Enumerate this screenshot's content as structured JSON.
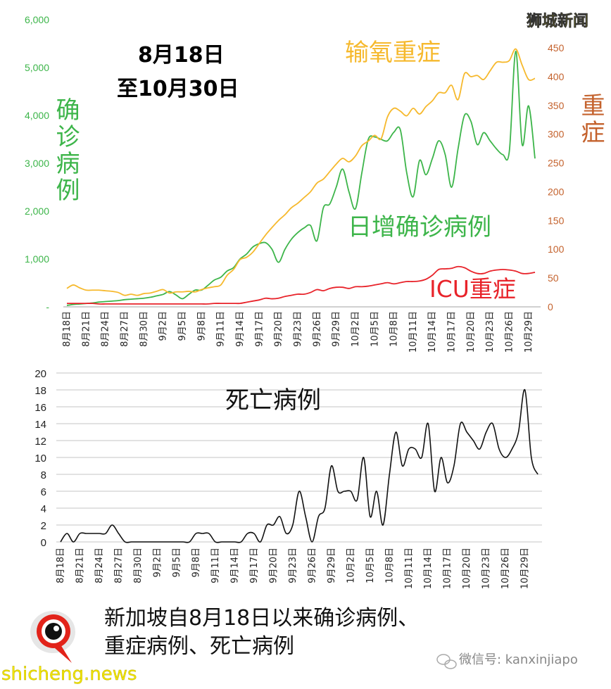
{
  "colors": {
    "cases": "#3db54a",
    "oxygen": "#f6b92d",
    "icu": "#e8232a",
    "right_axis": "#c4622d",
    "deaths": "#111111",
    "grid": "#d9d9d9",
    "watermark": "#f2e500"
  },
  "watermark_top": "狮城新闻",
  "watermark_bottom": "shicheng.news",
  "wechat": {
    "icon": "wechat-icon",
    "label": "微信号: kanxinjiapo"
  },
  "caption": {
    "line1": "新加坡自8月18日以来确诊病例、",
    "line2": "重症病例、死亡病例"
  },
  "chart_data": [
    {
      "type": "line",
      "title_line1": "8月18日",
      "title_line2": "至10月30日",
      "left_axis_label": "确诊病例",
      "right_axis_label": "重症",
      "left_ticks": [
        "-",
        "1,000",
        "2,000",
        "3,000",
        "4,000",
        "5,000",
        "6,000"
      ],
      "left_ylim": [
        0,
        6000
      ],
      "right_ticks": [
        "0",
        "50",
        "100",
        "150",
        "200",
        "250",
        "300",
        "350",
        "400",
        "450"
      ],
      "right_ylim": [
        0,
        450
      ],
      "x_tick_labels": [
        "8月18日",
        "8月21日",
        "8月24日",
        "8月27日",
        "8月30日",
        "9月2日",
        "9月5日",
        "9月8日",
        "9月11日",
        "9月14日",
        "9月17日",
        "9月20日",
        "9月23日",
        "9月26日",
        "9月29日",
        "10月2日",
        "10月5日",
        "10月8日",
        "10月11日",
        "10月14日",
        "10月17日",
        "10月20日",
        "10月23日",
        "10月26日",
        "10月29日"
      ],
      "x_start": "8月18日",
      "x_end": "10月30日",
      "grid": false,
      "series": [
        {
          "name": "日增确诊病例",
          "axis": "left",
          "values": [
            30,
            50,
            60,
            70,
            80,
            100,
            110,
            120,
            130,
            150,
            160,
            170,
            180,
            200,
            230,
            260,
            320,
            250,
            170,
            260,
            350,
            350,
            450,
            560,
            620,
            750,
            820,
            1000,
            1100,
            1250,
            1320,
            1340,
            1200,
            930,
            1200,
            1410,
            1550,
            1650,
            1700,
            1380,
            2070,
            2150,
            2500,
            2880,
            2400,
            2050,
            2800,
            3500,
            3550,
            3500,
            3470,
            3650,
            3700,
            2800,
            2300,
            3060,
            2760,
            3100,
            3470,
            3180,
            2500,
            3300,
            4000,
            3880,
            3390,
            3640,
            3470,
            3300,
            3180,
            3250,
            5340,
            3390,
            4200,
            3100
          ]
        },
        {
          "name": "输氧重症",
          "axis": "right",
          "values": [
            32,
            38,
            33,
            29,
            29,
            29,
            28,
            27,
            25,
            20,
            22,
            20,
            23,
            24,
            27,
            30,
            24,
            26,
            26,
            27,
            26,
            30,
            33,
            35,
            38,
            55,
            65,
            82,
            86,
            95,
            110,
            125,
            138,
            150,
            160,
            172,
            180,
            190,
            200,
            215,
            222,
            235,
            248,
            258,
            252,
            262,
            280,
            288,
            298,
            292,
            330,
            345,
            340,
            332,
            345,
            335,
            348,
            358,
            372,
            372,
            385,
            360,
            405,
            400,
            402,
            395,
            410,
            425,
            425,
            428,
            448,
            420,
            395,
            397
          ]
        },
        {
          "name": "ICU重症",
          "axis": "right",
          "values": [
            6,
            6,
            6,
            6,
            6,
            5,
            5,
            5,
            5,
            5,
            5,
            5,
            5,
            5,
            5,
            5,
            5,
            5,
            5,
            5,
            5,
            5,
            5,
            6,
            6,
            6,
            6,
            6,
            8,
            10,
            12,
            15,
            14,
            15,
            18,
            20,
            22,
            22,
            25,
            30,
            28,
            32,
            34,
            34,
            32,
            35,
            35,
            36,
            38,
            40,
            42,
            40,
            42,
            44,
            44,
            45,
            48,
            55,
            65,
            66,
            67,
            70,
            68,
            62,
            58,
            58,
            62,
            64,
            65,
            64,
            62,
            58,
            58,
            60
          ]
        }
      ]
    },
    {
      "type": "line",
      "title": "死亡病例",
      "y_ticks": [
        "0",
        "2",
        "4",
        "6",
        "8",
        "10",
        "12",
        "14",
        "16",
        "18",
        "20"
      ],
      "ylim": [
        0,
        20
      ],
      "grid": true,
      "x_tick_labels": [
        "8月18日",
        "8月21日",
        "8月24日",
        "8月27日",
        "8月30日",
        "9月2日",
        "9月5日",
        "9月8日",
        "9月11日",
        "9月14日",
        "9月17日",
        "9月20日",
        "9月23日",
        "9月26日",
        "9月29日",
        "10月2日",
        "10月5日",
        "10月8日",
        "10月11日",
        "10月14日",
        "10月17日",
        "10月20日",
        "10月23日",
        "10月26日",
        "10月29日"
      ],
      "series": [
        {
          "name": "死亡病例",
          "values": [
            0,
            1,
            0,
            1,
            1,
            1,
            1,
            1,
            2,
            1,
            0,
            0,
            0,
            0,
            0,
            0,
            0,
            0,
            0,
            0,
            0,
            1,
            1,
            1,
            0,
            0,
            0,
            0,
            0,
            1,
            1,
            0,
            2,
            2,
            3,
            1,
            2,
            6,
            3,
            0,
            3,
            4,
            9,
            6,
            6,
            6,
            5,
            10,
            3,
            6,
            2,
            8,
            13,
            9,
            11,
            11,
            10,
            14,
            6,
            10,
            7,
            9,
            14,
            13,
            12,
            11,
            13,
            14,
            11,
            10,
            11,
            13,
            18,
            10,
            8
          ]
        }
      ]
    }
  ]
}
